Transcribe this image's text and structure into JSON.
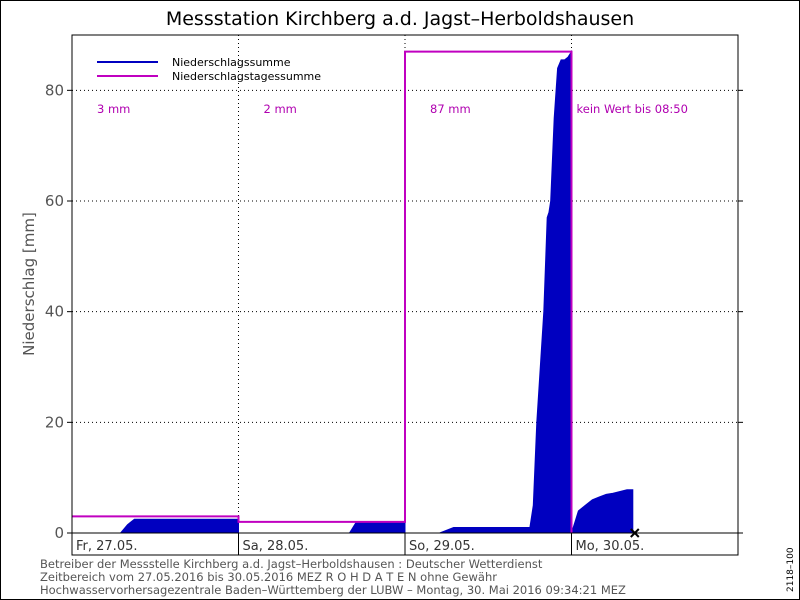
{
  "chart_data": {
    "type": "area",
    "title": "Messstation Kirchberg a.d. Jagst–Herboldshausen",
    "ylabel": "Niederschlag [mm]",
    "xlabel": "",
    "ylim": [
      0,
      90
    ],
    "yticks": [
      0,
      20,
      40,
      60,
      80
    ],
    "xlim": [
      "2016-05-27 00:00",
      "2016-05-31 00:00"
    ],
    "day_labels": [
      "Fr, 27.05.",
      "Sa, 28.05.",
      "So, 29.05.",
      "Mo, 30.05."
    ],
    "grid": true,
    "legend_position": "top-left",
    "series": [
      {
        "name": "Niederschlagssumme",
        "color": "#0000c0",
        "style": "filled-area",
        "x": [
          "2016-05-27 00:00",
          "2016-05-27 07:00",
          "2016-05-27 08:00",
          "2016-05-27 08:30",
          "2016-05-27 09:00",
          "2016-05-27 24:00",
          "2016-05-28 00:00",
          "2016-05-28 16:00",
          "2016-05-28 17:00",
          "2016-05-28 24:00",
          "2016-05-29 00:00",
          "2016-05-29 05:00",
          "2016-05-29 07:00",
          "2016-05-29 18:00",
          "2016-05-29 18:30",
          "2016-05-29 19:00",
          "2016-05-29 19:30",
          "2016-05-29 20:00",
          "2016-05-29 20:30",
          "2016-05-29 20:45",
          "2016-05-29 21:00",
          "2016-05-29 21:30",
          "2016-05-29 22:00",
          "2016-05-29 22:30",
          "2016-05-29 23:00",
          "2016-05-29 23:30",
          "2016-05-29 24:00",
          "2016-05-30 00:00",
          "2016-05-30 00:30",
          "2016-05-30 01:00",
          "2016-05-30 02:00",
          "2016-05-30 03:00",
          "2016-05-30 04:00",
          "2016-05-30 05:00",
          "2016-05-30 06:00",
          "2016-05-30 07:00",
          "2016-05-30 08:00",
          "2016-05-30 08:50"
        ],
        "y": [
          0,
          0,
          1.5,
          2,
          2.5,
          2.5,
          0,
          0,
          2,
          2,
          0,
          0,
          1,
          1,
          5,
          20,
          30,
          40,
          57,
          58,
          60,
          75,
          84,
          85.5,
          85.5,
          86,
          87,
          0,
          2,
          4,
          5,
          6,
          6.5,
          7,
          7.2,
          7.5,
          7.8,
          7.8
        ]
      },
      {
        "name": "Niederschlagstagessumme",
        "color": "#c000c0",
        "style": "step",
        "x": [
          "2016-05-27",
          "2016-05-28",
          "2016-05-29",
          "2016-05-30"
        ],
        "y": [
          3,
          2,
          87,
          null
        ]
      }
    ],
    "annotations": [
      "3 mm",
      "2 mm",
      "87 mm",
      "kein Wert bis 08:50"
    ]
  },
  "footer": {
    "line1": "Betreiber der Messstelle Kirchberg a.d. Jagst–Herboldshausen : Deutscher Wetterdienst",
    "line2": "Zeitbereich vom 27.05.2016 bis 30.05.2016    MEZ    R O H D A T E N ohne Gewähr",
    "line3": "Hochwasservorhersagezentrale Baden–Württemberg der LUBW – Montag, 30. Mai 2016 09:34:21 MEZ"
  },
  "side_code": "2118–100",
  "colors": {
    "area": "#0000c0",
    "daily": "#c000c0",
    "grid": "#000000",
    "axis_text": "#555555"
  }
}
